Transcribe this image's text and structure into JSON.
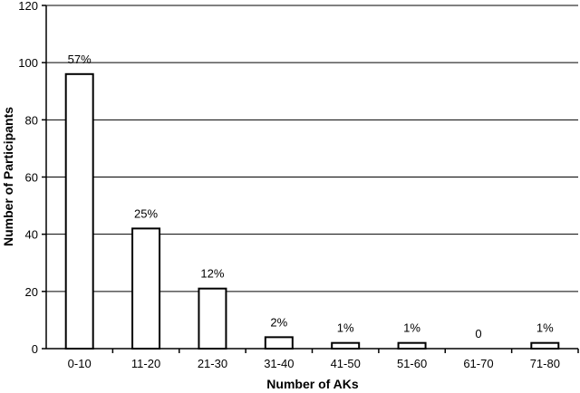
{
  "chart_data": {
    "type": "bar",
    "categories": [
      "0-10",
      "11-20",
      "21-30",
      "31-40",
      "41-50",
      "51-60",
      "61-70",
      "71-80"
    ],
    "values": [
      96,
      42,
      21,
      4,
      2,
      2,
      0,
      2
    ],
    "data_labels": [
      "57%",
      "25%",
      "12%",
      "2%",
      "1%",
      "1%",
      "0",
      "1%"
    ],
    "xlabel": "Number of AKs",
    "ylabel": "Number of Participants",
    "ylim": [
      0,
      120
    ],
    "yticks": [
      "0",
      "20",
      "40",
      "60",
      "80",
      "100",
      "120"
    ],
    "grid": true,
    "colors": {
      "bar_fill": "#ffffff",
      "bar_stroke": "#000000",
      "grid": "#000000"
    }
  }
}
